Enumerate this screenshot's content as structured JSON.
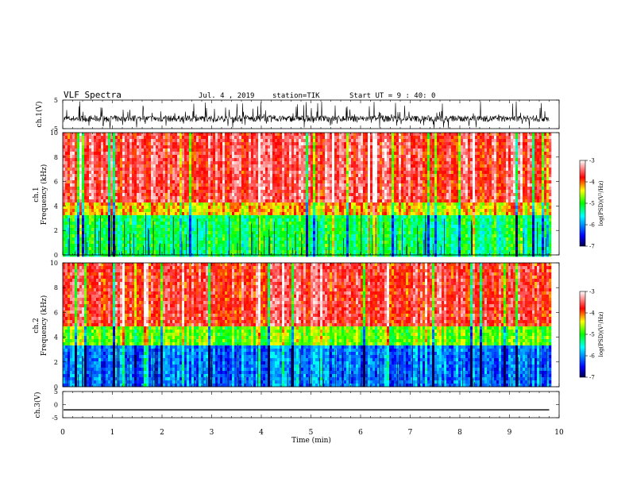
{
  "header": {
    "title": "VLF Spectra",
    "date": "Jul. 4 , 2019",
    "station": "station=TIK",
    "start_time": "Start UT = 9 : 40: 0"
  },
  "chart_data": [
    {
      "type": "line",
      "panel": "ch1-waveform",
      "ylabel": "ch.1(V)",
      "ylim": [
        -5,
        5
      ],
      "yticks": [
        "5",
        "-5"
      ],
      "xlim": [
        0,
        9.8
      ],
      "mean_amplitude_V": -1.5,
      "noise_span_V": [
        -5,
        3
      ]
    },
    {
      "type": "heatmap",
      "panel": "ch1-spectrogram",
      "ylabel_1": "ch.1",
      "ylabel_2": "Frequency (kHz)",
      "ylim": [
        0,
        10
      ],
      "yticks": [
        "0",
        "2",
        "4",
        "6",
        "8",
        "10"
      ],
      "xlim": [
        0,
        9.8
      ],
      "band_kHz": [
        {
          "from": 0,
          "to": 3.5,
          "log_psd": -5.2
        },
        {
          "from": 3.5,
          "to": 4.5,
          "log_psd": -4.3
        },
        {
          "from": 4.5,
          "to": 10,
          "log_psd": -3.6
        }
      ],
      "colorbar": {
        "label": "log(PSD)(V²/Hz)",
        "ticks": [
          "-3",
          "-4",
          "-5",
          "-6",
          "-7"
        ],
        "range": [
          -7,
          -3
        ]
      }
    },
    {
      "type": "heatmap",
      "panel": "ch2-spectrogram",
      "ylabel_1": "ch.2",
      "ylabel_2": "Frequency (kHz)",
      "ylim": [
        0,
        10
      ],
      "yticks": [
        "0",
        "2",
        "4",
        "6",
        "8",
        "10"
      ],
      "xlim": [
        0,
        9.8
      ],
      "band_kHz": [
        {
          "from": 0,
          "to": 3.5,
          "log_psd": -6.1
        },
        {
          "from": 3.5,
          "to": 5,
          "log_psd": -4.8
        },
        {
          "from": 5,
          "to": 10,
          "log_psd": -3.7
        }
      ],
      "colorbar": {
        "label": "log(PSD)(V²/Hz)",
        "ticks": [
          "-3",
          "-4",
          "-5",
          "-6",
          "-7"
        ],
        "range": [
          -7,
          -3
        ]
      }
    },
    {
      "type": "line",
      "panel": "ch3-waveform",
      "ylabel": "ch.3(V)",
      "ylim": [
        -5,
        5
      ],
      "yticks": [
        "5",
        "0",
        "-5"
      ],
      "xlim": [
        0,
        9.8
      ],
      "constant_value_V": -2
    }
  ],
  "xaxis": {
    "label": "Time (min)",
    "range": [
      0,
      10
    ],
    "ticks": [
      "0",
      "1",
      "2",
      "3",
      "4",
      "5",
      "6",
      "7",
      "8",
      "9",
      "10"
    ]
  },
  "colors": {
    "colormap": [
      "#00004a",
      "#0000ff",
      "#00ffff",
      "#00ff00",
      "#ffff00",
      "#ff0000",
      "#ffffff"
    ]
  }
}
